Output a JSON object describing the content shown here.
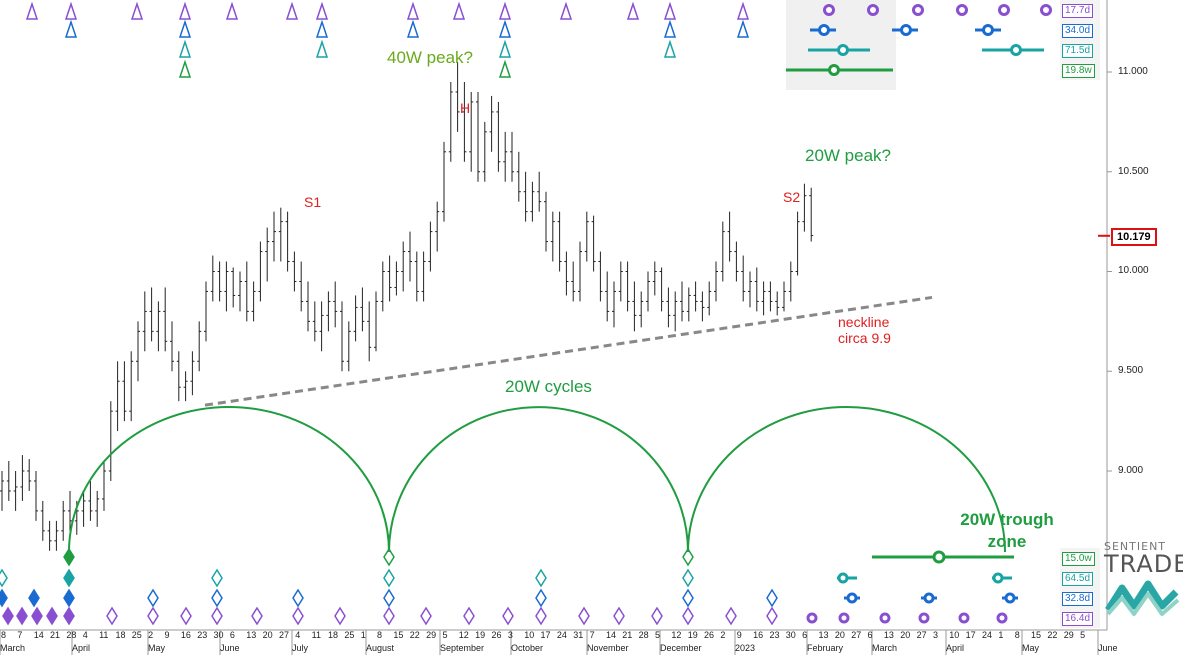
{
  "chart_data": {
    "type": "bar",
    "subtype": "ohlc",
    "title": "",
    "xlabel": "",
    "ylabel": "",
    "ylim": [
      8.6,
      11.3
    ],
    "y_ticks": [
      "11.000",
      "10.500",
      "10.000",
      "9.500",
      "9.000"
    ],
    "y_tick_values": [
      11.0,
      10.5,
      10.0,
      9.5,
      9.0
    ],
    "last_price_label": "10.179",
    "last_price": 10.179,
    "x_day_labels": [
      "8",
      "7",
      "14",
      "21",
      "28",
      "4",
      "11",
      "18",
      "25",
      "2",
      "9",
      "16",
      "23",
      "30",
      "6",
      "13",
      "20",
      "27",
      "4",
      "11",
      "18",
      "25",
      "1",
      "8",
      "15",
      "22",
      "29",
      "5",
      "12",
      "19",
      "26",
      "3",
      "10",
      "17",
      "24",
      "31",
      "7",
      "14",
      "21",
      "28",
      "5",
      "12",
      "19",
      "26",
      "2",
      "9",
      "16",
      "23",
      "30",
      "6",
      "13",
      "20",
      "27",
      "6",
      "13",
      "20",
      "27",
      "3",
      "10",
      "17",
      "24",
      "1",
      "8",
      "15",
      "22",
      "29",
      "5"
    ],
    "x_month_labels": [
      "March",
      "April",
      "May",
      "June",
      "July",
      "August",
      "September",
      "October",
      "November",
      "December",
      "2023",
      "February",
      "March",
      "April",
      "May",
      "June"
    ],
    "annotations": {
      "peak40w": "40W peak?",
      "peak20w": "20W peak?",
      "head": "H",
      "s1": "S1",
      "s2": "S2",
      "neckline_line1": "neckline",
      "neckline_line2": "circa 9.9",
      "cycles": "20W cycles",
      "trough_line1": "20W trough",
      "trough_line2": "zone"
    },
    "neckline": {
      "from": {
        "date": "2022-06-01",
        "value": 9.33
      },
      "to": {
        "date": "2023-02-20",
        "value": 9.87
      }
    },
    "cycle_badges_top": [
      "17.7d",
      "34.0d",
      "71.5d",
      "19.8w"
    ],
    "cycle_badges_bottom": [
      "15.0w",
      "64.5d",
      "32.8d",
      "16.4d"
    ],
    "series": [
      {
        "values": [
          [
            8.9,
            9.0,
            8.8,
            8.95
          ],
          [
            8.95,
            9.05,
            8.85,
            8.9
          ],
          [
            8.9,
            9.0,
            8.8,
            8.92
          ],
          [
            8.92,
            9.08,
            8.85,
            9.0
          ],
          [
            9.0,
            9.06,
            8.9,
            8.95
          ],
          [
            8.95,
            9.0,
            8.75,
            8.8
          ],
          [
            8.8,
            8.85,
            8.65,
            8.7
          ],
          [
            8.7,
            8.75,
            8.6,
            8.65
          ],
          [
            8.65,
            8.75,
            8.6,
            8.7
          ],
          [
            8.7,
            8.85,
            8.65,
            8.8
          ],
          [
            8.8,
            8.9,
            8.7,
            8.75
          ],
          [
            8.75,
            8.85,
            8.68,
            8.8
          ],
          [
            8.8,
            8.9,
            8.72,
            8.85
          ],
          [
            8.85,
            8.95,
            8.75,
            8.8
          ],
          [
            8.8,
            8.9,
            8.72,
            8.86
          ],
          [
            8.86,
            9.05,
            8.8,
            9.0
          ],
          [
            9.0,
            9.35,
            8.95,
            9.3
          ],
          [
            9.3,
            9.55,
            9.2,
            9.45
          ],
          [
            9.45,
            9.55,
            9.25,
            9.3
          ],
          [
            9.3,
            9.6,
            9.25,
            9.55
          ],
          [
            9.55,
            9.75,
            9.45,
            9.7
          ],
          [
            9.7,
            9.9,
            9.6,
            9.8
          ],
          [
            9.8,
            9.92,
            9.65,
            9.7
          ],
          [
            9.7,
            9.85,
            9.6,
            9.8
          ],
          [
            9.8,
            9.92,
            9.6,
            9.65
          ],
          [
            9.65,
            9.75,
            9.5,
            9.55
          ],
          [
            9.55,
            9.6,
            9.35,
            9.42
          ],
          [
            9.42,
            9.5,
            9.35,
            9.45
          ],
          [
            9.45,
            9.6,
            9.38,
            9.55
          ],
          [
            9.55,
            9.75,
            9.5,
            9.7
          ],
          [
            9.7,
            9.95,
            9.65,
            9.9
          ],
          [
            9.9,
            10.08,
            9.85,
            10.0
          ],
          [
            10.0,
            10.05,
            9.85,
            9.9
          ],
          [
            9.9,
            10.05,
            9.8,
            10.0
          ],
          [
            10.0,
            10.02,
            9.82,
            9.88
          ],
          [
            9.88,
            10.0,
            9.8,
            9.95
          ],
          [
            9.95,
            10.05,
            9.75,
            9.8
          ],
          [
            9.8,
            9.95,
            9.75,
            9.9
          ],
          [
            9.9,
            10.15,
            9.85,
            10.1
          ],
          [
            10.1,
            10.22,
            9.95,
            10.15
          ],
          [
            10.15,
            10.3,
            10.05,
            10.2
          ],
          [
            10.2,
            10.32,
            10.05,
            10.25
          ],
          [
            10.25,
            10.3,
            10.0,
            10.05
          ],
          [
            10.05,
            10.1,
            9.9,
            9.95
          ],
          [
            9.95,
            10.05,
            9.8,
            9.85
          ],
          [
            9.85,
            9.95,
            9.7,
            9.75
          ],
          [
            9.75,
            9.85,
            9.65,
            9.7
          ],
          [
            9.7,
            9.85,
            9.6,
            9.78
          ],
          [
            9.78,
            9.9,
            9.7,
            9.85
          ],
          [
            9.85,
            9.95,
            9.72,
            9.8
          ],
          [
            9.8,
            9.85,
            9.5,
            9.55
          ],
          [
            9.55,
            9.75,
            9.5,
            9.7
          ],
          [
            9.7,
            9.88,
            9.65,
            9.82
          ],
          [
            9.82,
            9.92,
            9.7,
            9.75
          ],
          [
            9.75,
            9.85,
            9.55,
            9.62
          ],
          [
            9.62,
            9.9,
            9.6,
            9.85
          ],
          [
            9.85,
            10.05,
            9.8,
            10.0
          ],
          [
            10.0,
            10.08,
            9.85,
            9.92
          ],
          [
            9.92,
            10.05,
            9.88,
            10.0
          ],
          [
            10.0,
            10.15,
            9.9,
            10.1
          ],
          [
            10.1,
            10.2,
            9.95,
            10.05
          ],
          [
            10.05,
            10.1,
            9.85,
            9.9
          ],
          [
            9.9,
            10.1,
            9.85,
            10.05
          ],
          [
            10.05,
            10.25,
            10.0,
            10.2
          ],
          [
            10.2,
            10.35,
            10.1,
            10.3
          ],
          [
            10.3,
            10.65,
            10.25,
            10.6
          ],
          [
            10.6,
            10.95,
            10.55,
            10.9
          ],
          [
            10.9,
            11.05,
            10.7,
            10.8
          ],
          [
            10.8,
            10.95,
            10.55,
            10.6
          ],
          [
            10.6,
            10.9,
            10.5,
            10.85
          ],
          [
            10.85,
            10.9,
            10.45,
            10.5
          ],
          [
            10.5,
            10.75,
            10.45,
            10.7
          ],
          [
            10.7,
            10.88,
            10.6,
            10.8
          ],
          [
            10.8,
            10.85,
            10.5,
            10.55
          ],
          [
            10.55,
            10.7,
            10.45,
            10.6
          ],
          [
            10.6,
            10.7,
            10.45,
            10.5
          ],
          [
            10.5,
            10.6,
            10.35,
            10.4
          ],
          [
            10.4,
            10.5,
            10.25,
            10.3
          ],
          [
            10.3,
            10.45,
            10.25,
            10.4
          ],
          [
            10.4,
            10.5,
            10.3,
            10.35
          ],
          [
            10.35,
            10.4,
            10.1,
            10.15
          ],
          [
            10.15,
            10.3,
            10.05,
            10.25
          ],
          [
            10.25,
            10.3,
            10.0,
            10.05
          ],
          [
            10.05,
            10.1,
            9.88,
            9.95
          ],
          [
            9.95,
            10.05,
            9.85,
            9.9
          ],
          [
            9.9,
            10.15,
            9.85,
            10.1
          ],
          [
            10.1,
            10.3,
            10.05,
            10.25
          ],
          [
            10.25,
            10.28,
            10.0,
            10.05
          ],
          [
            10.05,
            10.1,
            9.85,
            9.9
          ],
          [
            9.9,
            10.0,
            9.75,
            9.8
          ],
          [
            9.8,
            9.95,
            9.72,
            9.9
          ],
          [
            9.9,
            10.05,
            9.85,
            10.0
          ],
          [
            10.0,
            10.05,
            9.8,
            9.85
          ],
          [
            9.85,
            9.95,
            9.7,
            9.78
          ],
          [
            9.78,
            9.9,
            9.72,
            9.85
          ],
          [
            9.85,
            10.0,
            9.8,
            9.95
          ],
          [
            9.95,
            10.05,
            9.88,
            10.0
          ],
          [
            10.0,
            10.02,
            9.8,
            9.85
          ],
          [
            9.85,
            9.92,
            9.72,
            9.78
          ],
          [
            9.78,
            9.9,
            9.7,
            9.85
          ],
          [
            9.85,
            9.95,
            9.75,
            9.8
          ],
          [
            9.8,
            9.92,
            9.75,
            9.88
          ],
          [
            9.88,
            9.95,
            9.8,
            9.85
          ],
          [
            9.85,
            9.9,
            9.75,
            9.82
          ],
          [
            9.82,
            9.95,
            9.78,
            9.9
          ],
          [
            9.9,
            10.05,
            9.85,
            10.0
          ],
          [
            10.0,
            10.25,
            9.95,
            10.2
          ],
          [
            10.2,
            10.3,
            10.05,
            10.1
          ],
          [
            10.1,
            10.15,
            9.95,
            10.0
          ],
          [
            10.0,
            10.08,
            9.85,
            9.9
          ],
          [
            9.9,
            10.0,
            9.82,
            9.95
          ],
          [
            9.95,
            10.02,
            9.8,
            9.85
          ],
          [
            9.85,
            9.95,
            9.78,
            9.9
          ],
          [
            9.9,
            9.95,
            9.8,
            9.85
          ],
          [
            9.85,
            9.9,
            9.78,
            9.82
          ],
          [
            9.82,
            9.95,
            9.8,
            9.9
          ],
          [
            9.9,
            10.05,
            9.85,
            10.0
          ],
          [
            10.0,
            10.3,
            9.98,
            10.25
          ],
          [
            10.25,
            10.44,
            10.2,
            10.38
          ],
          [
            10.38,
            10.42,
            10.15,
            10.18
          ]
        ]
      }
    ]
  }
}
